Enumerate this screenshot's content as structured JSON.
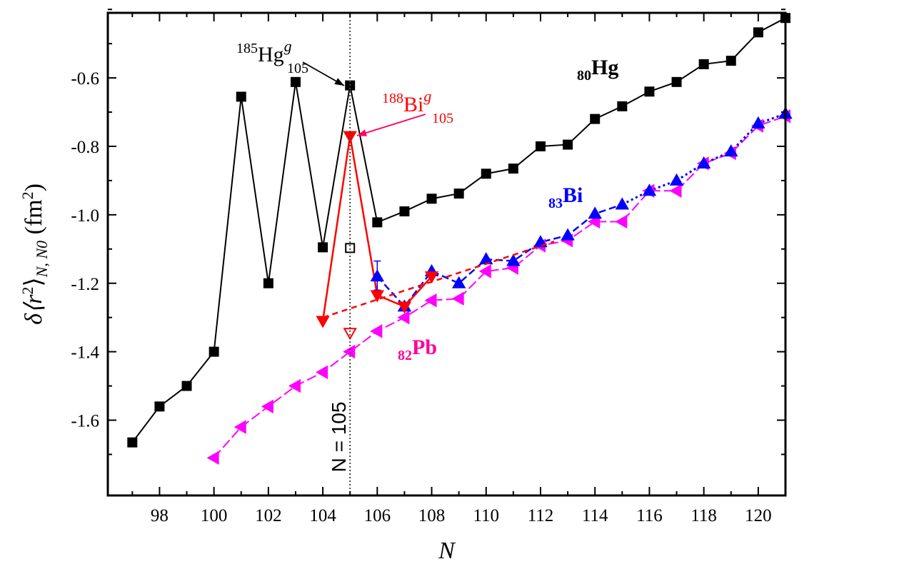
{
  "chart_data": {
    "type": "line",
    "title": "",
    "xlabel": "N",
    "ylabel": {
      "prefix": "δ⟨r",
      "sup": "2",
      "mid": "⟩",
      "sub": "N, N0",
      "unit": " (fm",
      "unit_sup": "2",
      "unit_end": ")"
    },
    "xlim": [
      96.1,
      121
    ],
    "ylim": [
      -1.82,
      -0.41
    ],
    "xticks": [
      98,
      100,
      102,
      104,
      106,
      108,
      110,
      112,
      114,
      116,
      118,
      120
    ],
    "yticks": [
      -1.6,
      -1.4,
      -1.2,
      -1.0,
      -0.8,
      -0.6
    ],
    "ytick_labels": [
      "-1.6",
      "-1.4",
      "-1.2",
      "-1.0",
      "-0.8",
      "-0.6"
    ],
    "grid": false,
    "series": [
      {
        "name": "80Hg",
        "color": "#000000",
        "marker": "square",
        "x": [
          97,
          98,
          99,
          100,
          101,
          102,
          103,
          104,
          105,
          106,
          107,
          108,
          109,
          110,
          111,
          112,
          113,
          114,
          115,
          116,
          117,
          118,
          119,
          120,
          121
        ],
        "y": [
          -1.665,
          -1.56,
          -1.5,
          -1.4,
          -0.655,
          -1.2,
          -0.612,
          -1.095,
          -0.622,
          -1.022,
          -0.99,
          -0.953,
          -0.938,
          -0.88,
          -0.865,
          -0.8,
          -0.795,
          -0.72,
          -0.683,
          -0.64,
          -0.612,
          -0.56,
          -0.55,
          -0.467,
          -0.425
        ]
      },
      {
        "name": "82Pb",
        "color": "#ff00ff",
        "marker": "triangle-left",
        "x": [
          100,
          101,
          102,
          103,
          104,
          105,
          106,
          107,
          108,
          109,
          110,
          111,
          112,
          113,
          114,
          115,
          116,
          117,
          118,
          119,
          120,
          121
        ],
        "y": [
          -1.71,
          -1.62,
          -1.56,
          -1.5,
          -1.46,
          -1.4,
          -1.34,
          -1.3,
          -1.25,
          -1.245,
          -1.165,
          -1.155,
          -1.09,
          -1.075,
          -1.02,
          -1.02,
          -0.93,
          -0.93,
          -0.85,
          -0.82,
          -0.74,
          -0.712
        ]
      },
      {
        "name": "83Bi",
        "color": "#0000ff",
        "marker": "triangle-up",
        "x": [
          106,
          107,
          108,
          109,
          110,
          111,
          112,
          113,
          114,
          115,
          116,
          117,
          118,
          119,
          120,
          121
        ],
        "y": [
          -1.18,
          -1.268,
          -1.165,
          -1.2,
          -1.13,
          -1.135,
          -1.08,
          -1.06,
          -0.997,
          -0.97,
          -0.93,
          -0.9,
          -0.85,
          -0.815,
          -0.733,
          -0.705
        ]
      },
      {
        "name": "188Bi105",
        "color": "#ff0000",
        "marker": "triangle-down",
        "x": [
          104,
          105,
          106,
          107,
          108
        ],
        "y": [
          -1.31,
          -0.77,
          -1.235,
          -1.268,
          -1.18
        ]
      }
    ],
    "open_points": [
      {
        "x": 105,
        "y": -1.097,
        "color": "#000000",
        "marker": "square"
      },
      {
        "x": 105,
        "y": -1.345,
        "color": "#ff0000",
        "marker": "triangle-down"
      }
    ],
    "trend_line": {
      "color": "#ff0000",
      "x": [
        104,
        112.5
      ],
      "y": [
        -1.3,
        -1.078
      ]
    },
    "error_bar": {
      "x": 106,
      "y": -1.18,
      "low": -1.22,
      "high": -1.135,
      "color": "#0000ff"
    },
    "vertical_line": {
      "x": 105,
      "label": "N = 105"
    },
    "annotations": {
      "hg_label": {
        "pre_sup": "185",
        "main": "Hg",
        "sup": "g",
        "sub": "105"
      },
      "bi188_label": {
        "pre_sup": "188",
        "main": "Bi",
        "sup": "g",
        "sub": "105"
      },
      "hg_series": {
        "sub": "80",
        "main": "Hg"
      },
      "bi_series": {
        "sub": "83",
        "main": "Bi"
      },
      "pb_series": {
        "sub": "82",
        "main": "Pb"
      }
    }
  }
}
